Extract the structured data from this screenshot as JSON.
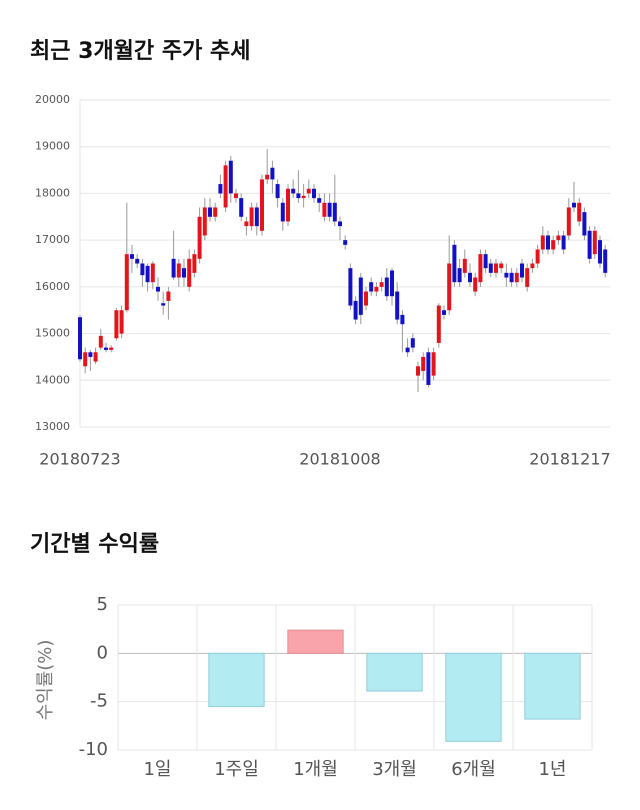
{
  "chart_data": [
    {
      "type": "candlestick",
      "title": "최근 3개월간 주가 추세",
      "categories": [
        "20180723",
        null,
        null,
        null,
        null,
        null,
        null,
        null,
        null,
        null,
        null,
        null,
        null,
        null,
        null,
        null,
        null,
        null,
        null,
        null,
        null,
        null,
        null,
        null,
        null,
        null,
        null,
        null,
        null,
        null,
        null,
        null,
        null,
        null,
        null,
        null,
        null,
        null,
        null,
        null,
        null,
        null,
        null,
        null,
        null,
        null,
        null,
        null,
        null,
        null,
        "20181008",
        null,
        null,
        null,
        null,
        null,
        null,
        null,
        null,
        null,
        null,
        null,
        null,
        null,
        null,
        null,
        null,
        null,
        null,
        null,
        null,
        null,
        null,
        null,
        null,
        null,
        null,
        null,
        null,
        null,
        null,
        null,
        null,
        null,
        null,
        null,
        null,
        null,
        null,
        null,
        null,
        null,
        null,
        null,
        null,
        null,
        null,
        null,
        "20181217",
        null,
        null,
        null,
        null
      ],
      "open": [
        15350,
        14300,
        14600,
        14400,
        14700,
        14700,
        14650,
        14900,
        15000,
        15500,
        16700,
        16600,
        16500,
        16450,
        16100,
        16000,
        15650,
        15700,
        16600,
        16200,
        16400,
        16000,
        16300,
        16600,
        17100,
        17700,
        17500,
        18200,
        17700,
        18700,
        17900,
        17900,
        17300,
        17300,
        17700,
        17200,
        18300,
        18550,
        18200,
        17800,
        17400,
        18100,
        18000,
        17900,
        18000,
        18100,
        17900,
        17500,
        17800,
        17800,
        17400,
        17000,
        16400,
        15700,
        16200,
        15600,
        16100,
        15900,
        16000,
        16200,
        16350,
        15900,
        15400,
        14700,
        14900,
        14100,
        14200,
        14600,
        14100,
        14800,
        15500,
        15500,
        16900,
        16400,
        16300,
        16300,
        15900,
        16100,
        16700,
        16500,
        16300,
        16400,
        16300,
        16300,
        16100,
        16500,
        16000,
        16400,
        16500,
        16800,
        17100,
        16800,
        17000,
        17100,
        17100,
        17800,
        17400,
        17600,
        17200,
        16700,
        17000,
        16800,
        16200
      ],
      "high": [
        15400,
        14700,
        14650,
        14700,
        15100,
        14800,
        14750,
        15550,
        15600,
        17800,
        16900,
        16700,
        16600,
        16500,
        16550,
        16200,
        15900,
        16000,
        17200,
        16600,
        16600,
        16800,
        16800,
        17700,
        17900,
        17900,
        17800,
        18400,
        18700,
        18800,
        18100,
        18000,
        17500,
        17800,
        17800,
        18400,
        18950,
        18700,
        18300,
        17900,
        18200,
        18300,
        18500,
        18200,
        18300,
        18200,
        18000,
        18000,
        18000,
        18400,
        17500,
        17100,
        16500,
        15800,
        16300,
        16000,
        16200,
        16100,
        16200,
        16400,
        16400,
        16100,
        15500,
        14900,
        15000,
        14400,
        14600,
        14700,
        14700,
        15650,
        15600,
        17100,
        17000,
        16600,
        16800,
        16500,
        16300,
        16800,
        16800,
        16600,
        16600,
        16550,
        16500,
        16400,
        16400,
        16600,
        16500,
        16600,
        16900,
        17300,
        17200,
        17100,
        17200,
        17200,
        17900,
        18250,
        17900,
        17700,
        17300,
        17300,
        17100,
        16900,
        16300
      ],
      "low": [
        14400,
        14150,
        14200,
        14350,
        14650,
        14600,
        14600,
        14850,
        14900,
        15450,
        16300,
        16400,
        16000,
        15900,
        15950,
        15700,
        15400,
        15300,
        16150,
        16000,
        16000,
        15900,
        16200,
        16500,
        17000,
        17400,
        17400,
        17900,
        17600,
        17800,
        17800,
        17400,
        17100,
        17200,
        17100,
        17100,
        18200,
        18000,
        17700,
        17200,
        17300,
        17900,
        17800,
        17700,
        17900,
        17800,
        17600,
        17400,
        17400,
        17300,
        17000,
        16800,
        15500,
        15200,
        15200,
        15500,
        15800,
        15800,
        15900,
        15700,
        15600,
        15200,
        14600,
        14500,
        14600,
        13750,
        14000,
        13850,
        14000,
        14700,
        15300,
        15400,
        16000,
        16000,
        16200,
        16000,
        15800,
        16000,
        16300,
        16200,
        16200,
        16300,
        16000,
        16000,
        16000,
        16100,
        15900,
        16300,
        16400,
        16700,
        16700,
        16700,
        16900,
        16700,
        17000,
        17600,
        17300,
        17000,
        16500,
        16600,
        16400,
        16200,
        16000
      ],
      "close": [
        14450,
        14600,
        14500,
        14600,
        14950,
        14650,
        14700,
        15500,
        15500,
        16700,
        16600,
        16500,
        16250,
        16100,
        16500,
        15900,
        15600,
        15900,
        16200,
        16500,
        16200,
        16600,
        16700,
        17500,
        17700,
        17500,
        17700,
        18000,
        18600,
        18000,
        18000,
        17500,
        17400,
        17700,
        17300,
        18300,
        18400,
        18300,
        17900,
        17400,
        18100,
        18000,
        17900,
        17950,
        18100,
        17900,
        17800,
        17800,
        17500,
        17400,
        17300,
        16900,
        15600,
        15300,
        15400,
        15900,
        15900,
        16000,
        16100,
        15800,
        15800,
        15300,
        15200,
        14600,
        14700,
        14300,
        14500,
        13900,
        14600,
        15600,
        15400,
        16500,
        16100,
        16100,
        16600,
        16100,
        16200,
        16700,
        16400,
        16300,
        16500,
        16500,
        16200,
        16100,
        16300,
        16200,
        16400,
        16500,
        16800,
        17100,
        16800,
        17000,
        17100,
        16800,
        17700,
        17700,
        17800,
        17100,
        16600,
        17200,
        16500,
        16300,
        16100
      ],
      "up_color": "#e3141c",
      "down_color": "#1212c4",
      "ylim": [
        13000,
        20000
      ],
      "yticks": [
        13000,
        14000,
        15000,
        16000,
        17000,
        18000,
        19000,
        20000
      ],
      "grid": true
    },
    {
      "type": "bar",
      "title": "기간별 수익률",
      "y_label": "수익률(%)",
      "categories": [
        "1일",
        "1주일",
        "1개월",
        "3개월",
        "6개월",
        "1년"
      ],
      "values": [
        0,
        -5.5,
        2.4,
        -3.9,
        -9.1,
        -6.8
      ],
      "positive_color": "#f9a4ab",
      "negative_color": "#b3ebf3",
      "ylim": [
        -10,
        5
      ],
      "yticks": [
        5,
        0,
        -5,
        -10
      ],
      "grid": true
    }
  ]
}
